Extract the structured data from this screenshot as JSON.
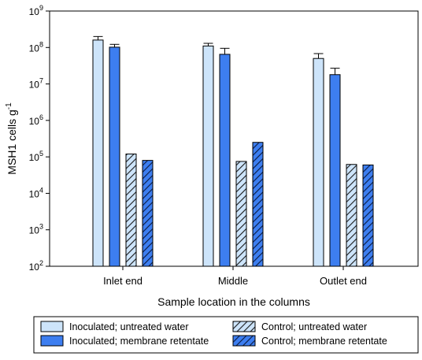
{
  "chart_data": {
    "type": "bar",
    "xlabel": "Sample location in the columns",
    "ylabel_base": "MSH1 cells g",
    "ylabel_sup": "-1",
    "yscale": "log",
    "ylim": [
      100,
      1000000000
    ],
    "ytick_labels": [
      {
        "base": "10",
        "exp": "2"
      },
      {
        "base": "10",
        "exp": "3"
      },
      {
        "base": "10",
        "exp": "4"
      },
      {
        "base": "10",
        "exp": "5"
      },
      {
        "base": "10",
        "exp": "6"
      },
      {
        "base": "10",
        "exp": "7"
      },
      {
        "base": "10",
        "exp": "8"
      },
      {
        "base": "10",
        "exp": "9"
      }
    ],
    "categories": [
      "Inlet end",
      "Middle",
      "Outlet end"
    ],
    "series": [
      {
        "name": "Inoculated; untreated water",
        "fill": "#cde4fa",
        "pattern": "solid",
        "values": [
          160000000,
          110000000,
          50000000
        ],
        "err_upper": [
          200000000,
          130000000,
          68000000
        ]
      },
      {
        "name": "Inoculated; membrane retentate",
        "fill": "#3d7ef0",
        "pattern": "solid",
        "values": [
          102000000,
          65000000,
          18000000
        ],
        "err_upper": [
          122000000,
          95000000,
          27000000
        ]
      },
      {
        "name": "Control; untreated water",
        "fill": "#cde4fa",
        "pattern": "hatch",
        "values": [
          120000,
          75000,
          62000
        ],
        "err_upper": [
          null,
          null,
          null
        ]
      },
      {
        "name": "Control; membrane retentate",
        "fill": "#3d7ef0",
        "pattern": "hatch",
        "values": [
          80000,
          250000,
          60000
        ],
        "err_upper": [
          null,
          null,
          null
        ]
      }
    ],
    "legend_position": "bottom",
    "grid": false
  }
}
